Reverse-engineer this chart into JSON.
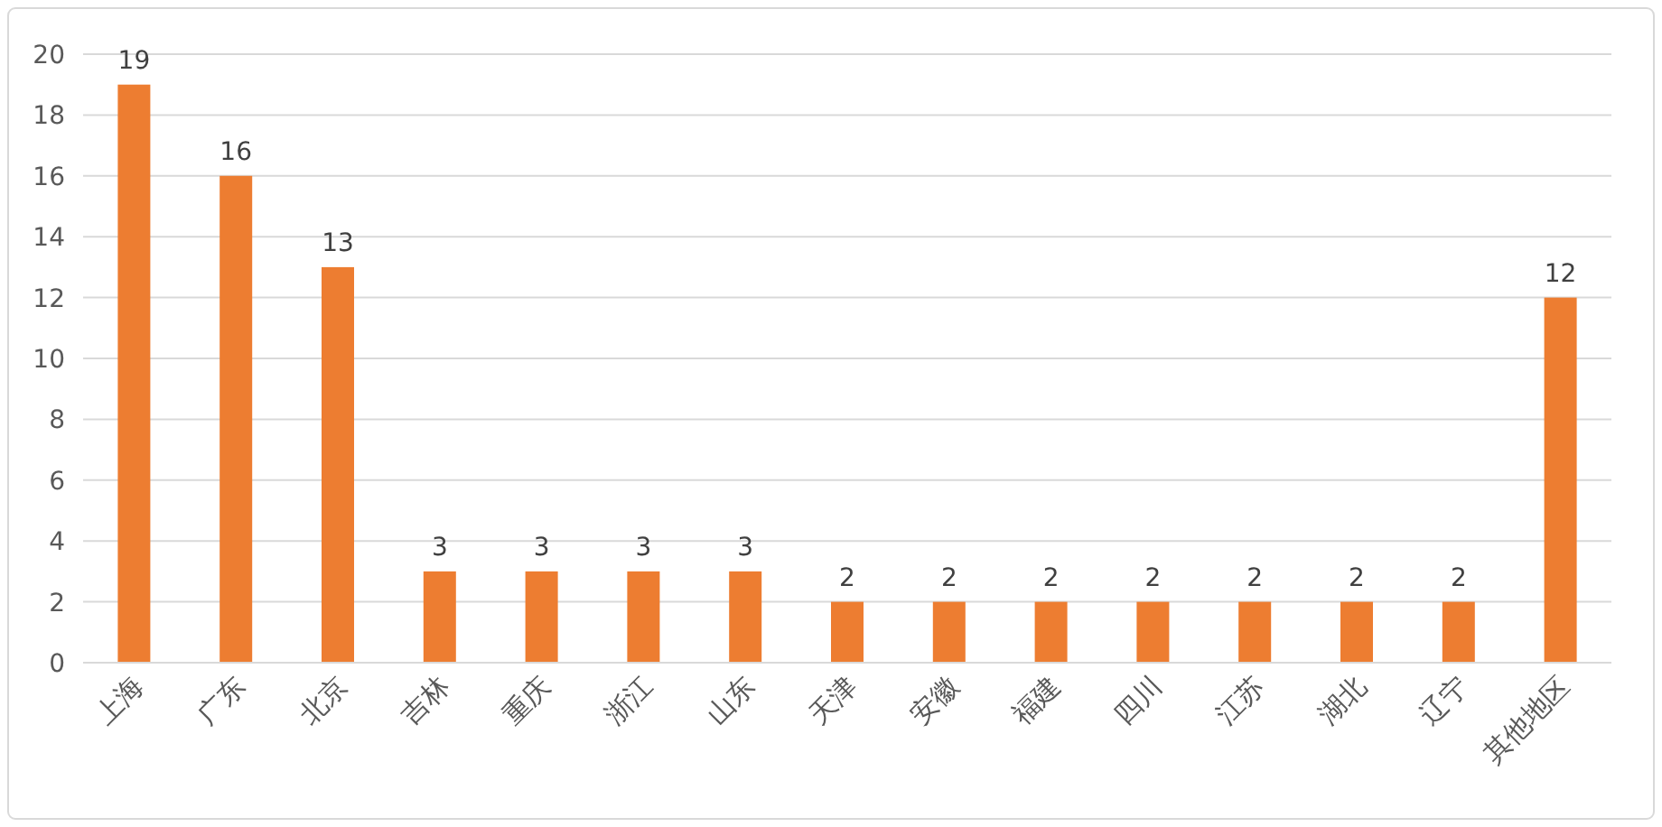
{
  "chart_data": {
    "type": "bar",
    "categories": [
      "上海",
      "广东",
      "北京",
      "吉林",
      "重庆",
      "浙江",
      "山东",
      "天津",
      "安徽",
      "福建",
      "四川",
      "江苏",
      "湖北",
      "辽宁",
      "其他地区"
    ],
    "values": [
      19,
      16,
      13,
      3,
      3,
      3,
      3,
      2,
      2,
      2,
      2,
      2,
      2,
      2,
      12
    ],
    "color": "#ed7d31",
    "ylim": [
      0,
      20
    ],
    "yticks": [
      0,
      2,
      4,
      6,
      8,
      10,
      12,
      14,
      16,
      18,
      20
    ],
    "grid": "y",
    "data_labels": true
  }
}
